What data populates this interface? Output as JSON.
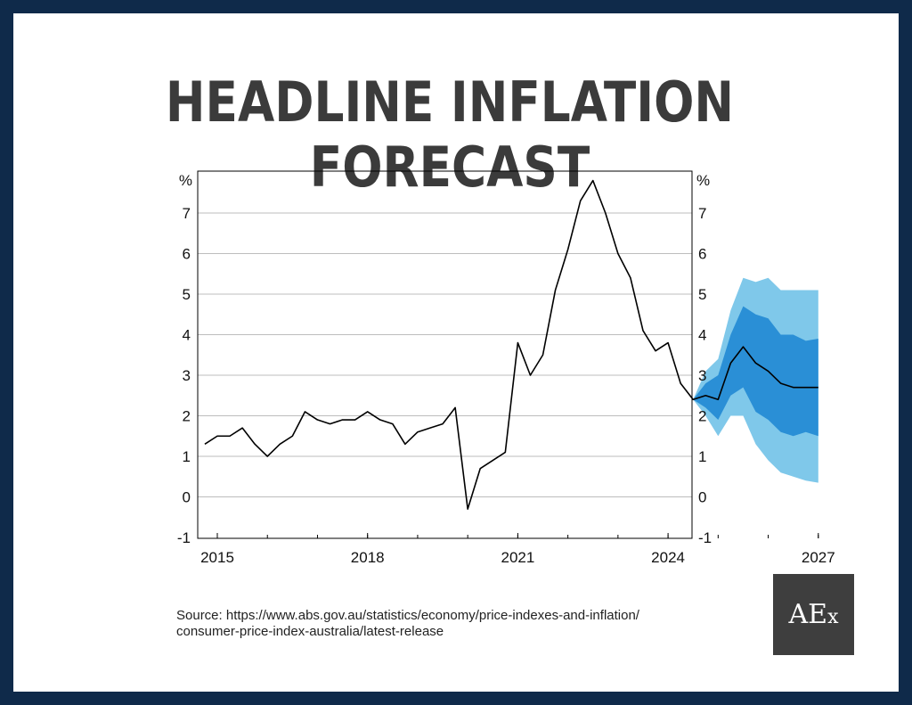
{
  "title": "HEADLINE INFLATION FORECAST",
  "source_line1": "Source: https://www.abs.gov.au/statistics/economy/price-indexes-and-inflation/",
  "source_line2": "consumer-price-index-australia/latest-release",
  "logo": {
    "main": "AE",
    "small": "x"
  },
  "colors": {
    "frame": "#0f2a4a",
    "band_outer": "#7fc8ea",
    "band_inner": "#2a8fd6",
    "line": "#000000"
  },
  "chart_data": {
    "type": "line",
    "title": "HEADLINE INFLATION FORECAST",
    "unit_left": "%",
    "unit_right": "%",
    "ylim": [
      -1,
      8
    ],
    "yticks": [
      -1,
      0,
      1,
      2,
      3,
      4,
      5,
      6,
      7
    ],
    "xlim": [
      2014.55,
      2027.3
    ],
    "xticks": [
      2015,
      2018,
      2021,
      2024,
      2027
    ],
    "grid": true,
    "series": [
      {
        "values": [
          [
            2014.75,
            1.3
          ],
          [
            2015.0,
            1.5
          ],
          [
            2015.25,
            1.5
          ],
          [
            2015.5,
            1.7
          ],
          [
            2015.75,
            1.3
          ],
          [
            2016.0,
            1.0
          ],
          [
            2016.25,
            1.3
          ],
          [
            2016.5,
            1.5
          ],
          [
            2016.75,
            2.1
          ],
          [
            2017.0,
            1.9
          ],
          [
            2017.25,
            1.8
          ],
          [
            2017.5,
            1.9
          ],
          [
            2017.75,
            1.9
          ],
          [
            2018.0,
            2.1
          ],
          [
            2018.25,
            1.9
          ],
          [
            2018.5,
            1.8
          ],
          [
            2018.75,
            1.3
          ],
          [
            2019.0,
            1.6
          ],
          [
            2019.25,
            1.7
          ],
          [
            2019.5,
            1.8
          ],
          [
            2019.75,
            2.2
          ],
          [
            2020.0,
            -0.3
          ],
          [
            2020.25,
            0.7
          ],
          [
            2020.5,
            0.9
          ],
          [
            2020.75,
            1.1
          ],
          [
            2021.0,
            3.8
          ],
          [
            2021.25,
            3.0
          ],
          [
            2021.5,
            3.5
          ],
          [
            2021.75,
            5.1
          ],
          [
            2022.0,
            6.1
          ],
          [
            2022.25,
            7.3
          ],
          [
            2022.5,
            7.8
          ],
          [
            2022.75,
            7.0
          ],
          [
            2023.0,
            6.0
          ],
          [
            2023.25,
            5.4
          ],
          [
            2023.5,
            4.1
          ],
          [
            2023.75,
            3.6
          ],
          [
            2024.0,
            3.8
          ],
          [
            2024.25,
            2.8
          ],
          [
            2024.5,
            2.4
          ],
          [
            2024.75,
            2.5
          ],
          [
            2025.0,
            2.4
          ],
          [
            2025.25,
            3.3
          ],
          [
            2025.5,
            3.7
          ],
          [
            2025.75,
            3.3
          ],
          [
            2026.0,
            3.1
          ],
          [
            2026.25,
            2.8
          ],
          [
            2026.5,
            2.7
          ],
          [
            2026.75,
            2.7
          ],
          [
            2027.0,
            2.7
          ]
        ]
      }
    ],
    "bands": [
      {
        "level": "outer",
        "x": [
          2024.5,
          2024.75,
          2025.0,
          2025.25,
          2025.5,
          2025.75,
          2026.0,
          2026.25,
          2026.5,
          2026.75,
          2027.0
        ],
        "upper": [
          2.4,
          3.1,
          3.4,
          4.6,
          5.4,
          5.3,
          5.4,
          5.1,
          5.1,
          5.1,
          5.1
        ],
        "lower": [
          2.4,
          2.0,
          1.5,
          2.0,
          2.0,
          1.3,
          0.9,
          0.6,
          0.5,
          0.4,
          0.35
        ]
      },
      {
        "level": "inner",
        "x": [
          2024.5,
          2024.75,
          2025.0,
          2025.25,
          2025.5,
          2025.75,
          2026.0,
          2026.25,
          2026.5,
          2026.75,
          2027.0
        ],
        "upper": [
          2.4,
          2.8,
          3.0,
          4.0,
          4.7,
          4.5,
          4.4,
          4.0,
          4.0,
          3.85,
          3.9
        ],
        "lower": [
          2.4,
          2.2,
          1.9,
          2.5,
          2.7,
          2.1,
          1.9,
          1.6,
          1.5,
          1.6,
          1.5
        ]
      }
    ]
  }
}
